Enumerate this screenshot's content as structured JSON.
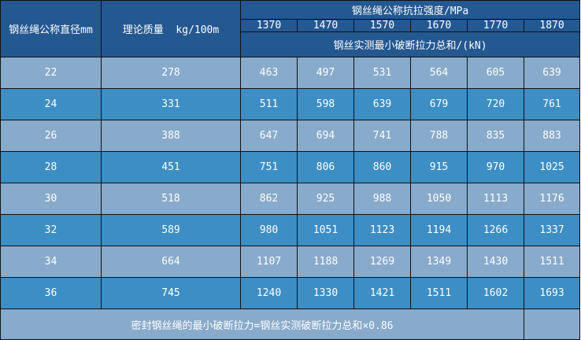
{
  "header": {
    "diameter": "钢丝绳公称直径mm",
    "mass": "理论质量  kg/100m",
    "strength": "钢丝绳公称抗拉强度/MPa",
    "grades": [
      "1370",
      "1470",
      "1570",
      "1670",
      "1770",
      "1870"
    ],
    "force": "钢丝实测最小破断拉力总和/(kN)"
  },
  "rows": [
    {
      "d": "22",
      "m": "278",
      "v": [
        "463",
        "497",
        "531",
        "564",
        "605",
        "639"
      ]
    },
    {
      "d": "24",
      "m": "331",
      "v": [
        "511",
        "598",
        "639",
        "679",
        "720",
        "761"
      ]
    },
    {
      "d": "26",
      "m": "388",
      "v": [
        "647",
        "694",
        "741",
        "788",
        "835",
        "883"
      ]
    },
    {
      "d": "28",
      "m": "451",
      "v": [
        "751",
        "806",
        "860",
        "915",
        "970",
        "1025"
      ]
    },
    {
      "d": "30",
      "m": "518",
      "v": [
        "862",
        "925",
        "988",
        "1050",
        "1113",
        "1176"
      ]
    },
    {
      "d": "32",
      "m": "589",
      "v": [
        "980",
        "1051",
        "1123",
        "1194",
        "1266",
        "1337"
      ]
    },
    {
      "d": "34",
      "m": "664",
      "v": [
        "1107",
        "1188",
        "1269",
        "1349",
        "1430",
        "1511"
      ]
    },
    {
      "d": "36",
      "m": "745",
      "v": [
        "1240",
        "1330",
        "1421",
        "1511",
        "1602",
        "1693"
      ]
    }
  ],
  "footer": "密封钢丝绳的最小破断拉力=钢丝实测破断拉力总和×0.86",
  "colors": {
    "header": "#245891",
    "row_light": "#88aacb",
    "row_dark": "#3d8ec4"
  }
}
